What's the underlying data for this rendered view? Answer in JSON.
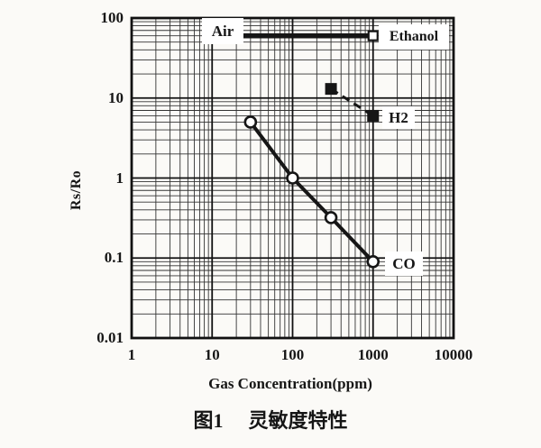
{
  "page": {
    "background": "#fbfaf7"
  },
  "figure": {
    "ylabel": "Rs/Ro",
    "xlabel": "Gas Concentration(ppm)",
    "caption_fig_no": "图1",
    "caption_title": "灵敏度特性"
  },
  "chart_data": {
    "type": "line",
    "title": "图1 灵敏度特性",
    "xlabel": "Gas Concentration(ppm)",
    "ylabel": "Rs/Ro",
    "x_scale": "log",
    "y_scale": "log",
    "xlim": [
      1,
      10000
    ],
    "ylim": [
      0.01,
      100
    ],
    "x_ticks": [
      1,
      10,
      100,
      1000,
      10000
    ],
    "x_tick_labels": [
      "1",
      "10",
      "100",
      "1000",
      "10000"
    ],
    "y_ticks": [
      100,
      10,
      1,
      0.1,
      0.01
    ],
    "y_tick_labels": [
      "100",
      "10",
      "1",
      "0.1",
      "0.01"
    ],
    "grid": {
      "major": true,
      "minor": true
    },
    "legend_position": "inline-labels",
    "series": [
      {
        "name": "Air",
        "label": "Air",
        "style": "heavy-solid",
        "marker": "none",
        "points": [
          [
            20,
            60
          ],
          [
            1150,
            60
          ]
        ]
      },
      {
        "name": "Ethanol",
        "label": "Ethanol",
        "style": "none",
        "marker": "open-square",
        "points": [
          [
            1000,
            60
          ]
        ]
      },
      {
        "name": "H2",
        "label": "H2",
        "style": "dashed",
        "marker": "filled-square",
        "points": [
          [
            300,
            13
          ],
          [
            1000,
            6
          ]
        ]
      },
      {
        "name": "CO",
        "label": "CO",
        "style": "thick-solid",
        "marker": "open-circle",
        "points": [
          [
            30,
            5
          ],
          [
            100,
            1
          ],
          [
            300,
            0.32
          ],
          [
            1000,
            0.09
          ]
        ]
      }
    ],
    "colors": {
      "ink": "#161616",
      "grid_major": "#111111",
      "grid_minor": "#333333",
      "label_box_bg": "#ffffff"
    }
  }
}
